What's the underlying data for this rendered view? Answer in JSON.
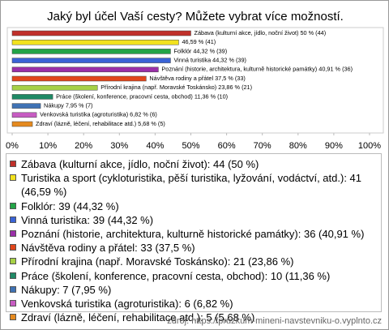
{
  "chart_data": {
    "type": "hbar",
    "title": "Jaký byl účel Vaší cesty? Můžete vybrat více možností.",
    "categories": [
      "Zábava (kulturní akce, jídlo, noční život): 44 (50 %)",
      "Turistika a sport (cykloturistika, pěší turistika, lyžování, vodáctví, atd.): 41 (46,59 %)",
      "Folklór: 39 (44,32 %)",
      "Vinná turistika: 39 (44,32 %)",
      "Poznání (historie, architektura, kulturně historické památky): 36 (40,91 %)",
      "Návštěva rodiny a přátel: 33 (37,5 %)",
      "Přírodní krajina (např. Moravské Toskánsko): 21 (23,86 %)",
      "Práce (školení, konference, pracovní cesta, obchod): 10 (11,36 %)",
      "Nákupy: 7 (7,95 %)",
      "Venkovská turistika (agroturistika): 6 (6,82 %)",
      "Zdraví (lázně, léčení, rehabilitace atd.): 5 (5,68 %)"
    ],
    "values": [
      50,
      46.59,
      44.32,
      44.32,
      40.91,
      37.5,
      23.86,
      11.36,
      7.95,
      6.82,
      5.68
    ],
    "value_labels": [
      "Zábava (kulturní akce, jídlo, noční život) 50 % (44)",
      "46,59 % (41)",
      "Folklór 44,32 % (39)",
      "Vinná turistika 44,32 % (39)",
      "Poznání (historie, architektura, kulturně historické památky) 40,91 % (36)",
      "Návštěva rodiny a přátel 37,5 % (33)",
      "Přírodní krajina (např. Moravské Toskánsko) 23,86 % (21)",
      "Práce (školení, konference, pracovní cesta, obchod) 11,36 % (10)",
      "Nákupy 7,95 % (7)",
      "Venkovská turistika (agroturistika) 6,82 % (6)",
      "Zdraví (lázně, léčení, rehabilitace atd.) 5,68 % (5)"
    ],
    "colors": [
      "#c0302a",
      "#f2e21e",
      "#22a447",
      "#3a63d6",
      "#9a2fa8",
      "#e2461b",
      "#a6d146",
      "#1f8a66",
      "#3f72b4",
      "#c75cc2",
      "#e58a1f"
    ],
    "xlim": [
      0,
      100
    ],
    "xticks": [
      {
        "value": 0,
        "label": "0%"
      },
      {
        "value": 10,
        "label": "10%"
      },
      {
        "value": 20,
        "label": "20%"
      },
      {
        "value": 30,
        "label": "30%"
      },
      {
        "value": 40,
        "label": "40%"
      },
      {
        "value": 50,
        "label": "50%"
      },
      {
        "value": 60,
        "label": "60%"
      },
      {
        "value": 70,
        "label": "70%"
      },
      {
        "value": 80,
        "label": "80%"
      },
      {
        "value": 90,
        "label": "90%"
      },
      {
        "value": 100,
        "label": "100%"
      }
    ],
    "source": "zdroj: https://pruzkum-mineni-navstevniku-o.vyplnto.cz"
  }
}
